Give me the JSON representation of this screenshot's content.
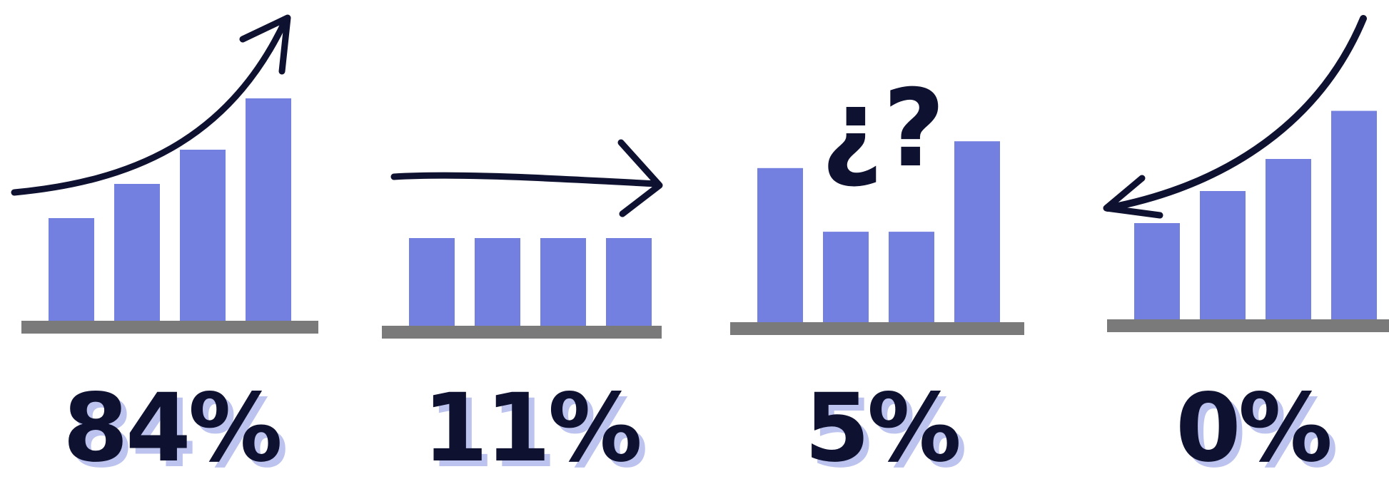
{
  "colors": {
    "bar": "#7480df",
    "base": "#7a7a7a",
    "ink": "#0e1130",
    "label_shadow": "#bcc3ee"
  },
  "chart_data": [
    {
      "type": "bar",
      "trend": "increasing",
      "arrow": "up-right",
      "values": [
        3,
        4,
        5,
        6.5
      ],
      "label": "84%"
    },
    {
      "type": "bar",
      "trend": "flat",
      "arrow": "right",
      "values": [
        3,
        3,
        3,
        3
      ],
      "label": "11%"
    },
    {
      "type": "bar",
      "trend": "uncertain",
      "annotation": "¿?",
      "values": [
        4.6,
        2.7,
        2.7,
        5.4
      ],
      "label": "5%"
    },
    {
      "type": "bar",
      "trend": "increasing",
      "arrow": "down-left",
      "values": [
        3,
        4,
        5,
        6.5
      ],
      "label": "0%"
    }
  ]
}
